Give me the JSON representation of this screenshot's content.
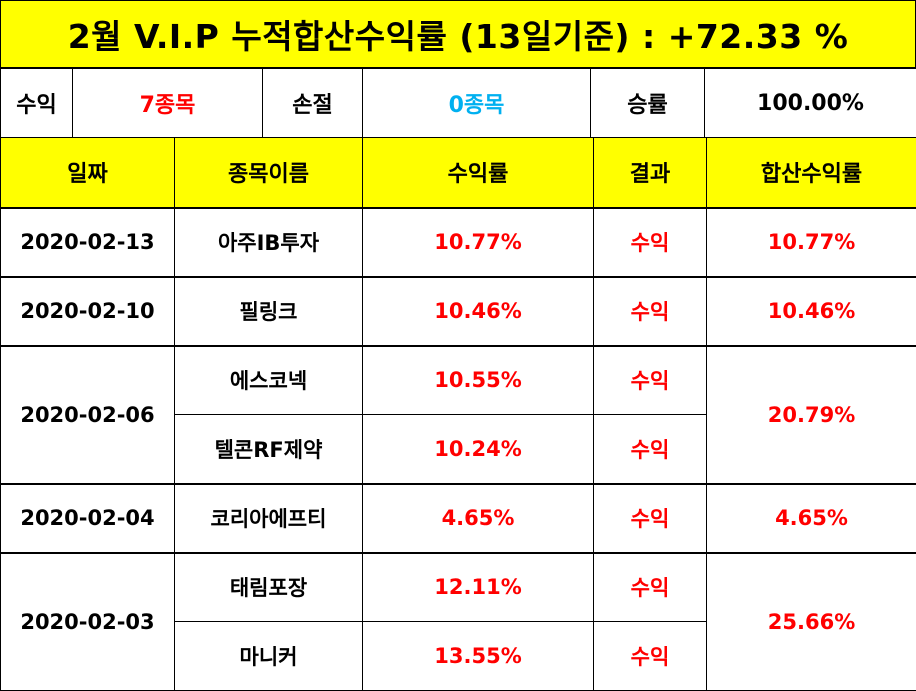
{
  "title": "2월 V.I.P 누적합산수익률 (13일기준) : +72.33 %",
  "summary": {
    "profit_label": "수익",
    "profit_value": "7종목",
    "loss_label": "손절",
    "loss_value": "0종목",
    "winrate_label": "승률",
    "winrate_value": "100.00%"
  },
  "headers": [
    "일짜",
    "종목이름",
    "수익률",
    "결과",
    "합산수익률"
  ],
  "groups": [
    {
      "date": "2020-02-13",
      "total": "10.77%",
      "rows": [
        {
          "name": "아주IB투자",
          "rate": "10.77%",
          "result": "수익"
        }
      ]
    },
    {
      "date": "2020-02-10",
      "total": "10.46%",
      "rows": [
        {
          "name": "필링크",
          "rate": "10.46%",
          "result": "수익"
        }
      ]
    },
    {
      "date": "2020-02-06",
      "total": "20.79%",
      "rows": [
        {
          "name": "에스코넥",
          "rate": "10.55%",
          "result": "수익"
        },
        {
          "name": "텔콘RF제약",
          "rate": "10.24%",
          "result": "수익"
        }
      ]
    },
    {
      "date": "2020-02-04",
      "total": "4.65%",
      "rows": [
        {
          "name": "코리아에프티",
          "rate": "4.65%",
          "result": "수익"
        }
      ]
    },
    {
      "date": "2020-02-03",
      "total": "25.66%",
      "rows": [
        {
          "name": "태림포장",
          "rate": "12.11%",
          "result": "수익"
        },
        {
          "name": "마니커",
          "rate": "13.55%",
          "result": "수익"
        }
      ]
    }
  ],
  "colors": {
    "header_bg": "#ffff00",
    "profit_text": "#ff0000",
    "loss_text": "#00b0f0",
    "border": "#000000"
  }
}
